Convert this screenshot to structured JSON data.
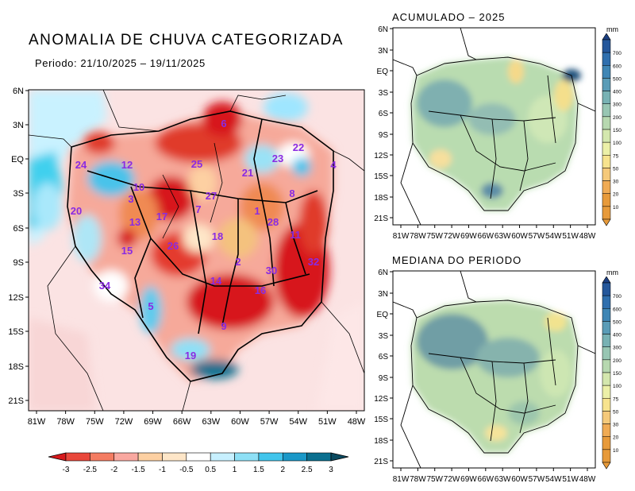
{
  "main": {
    "title": "ANOMALIA DE CHUVA CATEGORIZADA",
    "period": "Periodo: 21/10/2025 – 19/11/2025",
    "lat_ticks": [
      "6N",
      "3N",
      "EQ",
      "3S",
      "6S",
      "9S",
      "12S",
      "15S",
      "18S",
      "21S"
    ],
    "lon_ticks": [
      "81W",
      "78W",
      "75W",
      "72W",
      "69W",
      "66W",
      "63W",
      "60W",
      "57W",
      "54W",
      "51W",
      "48W"
    ],
    "region_labels": [
      "1",
      "2",
      "3",
      "4",
      "5",
      "6",
      "7",
      "8",
      "9",
      "10",
      "11",
      "12",
      "13",
      "14",
      "15",
      "16",
      "17",
      "18",
      "19",
      "20",
      "21",
      "22",
      "23",
      "24",
      "25",
      "26",
      "27",
      "28",
      "30",
      "32",
      "34"
    ],
    "colorbar": {
      "labels": [
        "-3",
        "-2.5",
        "-2",
        "-1.5",
        "-1",
        "-0.5",
        "0.5",
        "1",
        "1.5",
        "2",
        "2.5",
        "3"
      ],
      "colors": [
        "#d7191c",
        "#e9473b",
        "#f47c62",
        "#f9a8a0",
        "#fdd0a2",
        "#fee6c8",
        "#ffffff",
        "#c7f0ff",
        "#8ee0f6",
        "#41c5ec",
        "#1a98c8",
        "#0a6f8f",
        "#0a4a60"
      ]
    }
  },
  "acumulado": {
    "title": "ACUMULADO – 2025",
    "unit": "mm",
    "lat_ticks": [
      "6N",
      "3N",
      "EQ",
      "3S",
      "6S",
      "9S",
      "12S",
      "15S",
      "18S",
      "21S"
    ],
    "lon_ticks": [
      "81W",
      "78W",
      "75W",
      "72W",
      "69W",
      "66W",
      "63W",
      "60W",
      "57W",
      "54W",
      "51W",
      "48W"
    ],
    "colorbar_labels": [
      "700",
      "600",
      "500",
      "400",
      "300",
      "200",
      "150",
      "100",
      "75",
      "50",
      "30",
      "20",
      "10"
    ]
  },
  "mediana": {
    "title": "MEDIANA DO PERIODO",
    "unit": "mm",
    "lat_ticks": [
      "6N",
      "3N",
      "EQ",
      "3S",
      "6S",
      "9S",
      "12S",
      "15S",
      "18S",
      "21S"
    ],
    "lon_ticks": [
      "81W",
      "78W",
      "75W",
      "72W",
      "69W",
      "66W",
      "63W",
      "60W",
      "57W",
      "54W",
      "51W",
      "48W"
    ],
    "colorbar_labels": [
      "700",
      "600",
      "500",
      "400",
      "300",
      "200",
      "150",
      "100",
      "75",
      "50",
      "30",
      "20",
      "10"
    ]
  }
}
